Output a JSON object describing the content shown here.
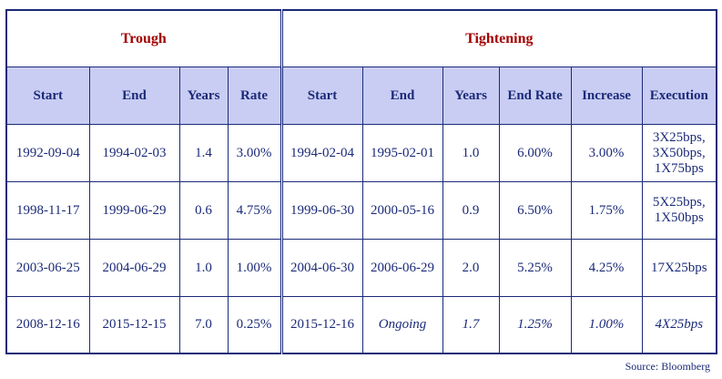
{
  "groups": {
    "trough": "Trough",
    "tightening": "Tightening"
  },
  "headers": {
    "trough_start": "Start",
    "trough_end": "End",
    "trough_years": "Years",
    "trough_rate": "Rate",
    "tight_start": "Start",
    "tight_end": "End",
    "tight_years": "Years",
    "tight_end_rate": "End Rate",
    "increase": "Increase",
    "execution": "Execution"
  },
  "rows": [
    {
      "trough_start": "1992-09-04",
      "trough_end": "1994-02-03",
      "trough_years": "1.4",
      "trough_rate": "3.00%",
      "tight_start": "1994-02-04",
      "tight_end": "1995-02-01",
      "tight_years": "1.0",
      "end_rate": "6.00%",
      "increase": "3.00%",
      "execution": [
        "3X25bps,",
        "3X50bps,",
        "1X75bps"
      ]
    },
    {
      "trough_start": "1998-11-17",
      "trough_end": "1999-06-29",
      "trough_years": "0.6",
      "trough_rate": "4.75%",
      "tight_start": "1999-06-30",
      "tight_end": "2000-05-16",
      "tight_years": "0.9",
      "end_rate": "6.50%",
      "increase": "1.75%",
      "execution": [
        "5X25bps,",
        "1X50bps"
      ]
    },
    {
      "trough_start": "2003-06-25",
      "trough_end": "2004-06-29",
      "trough_years": "1.0",
      "trough_rate": "1.00%",
      "tight_start": "2004-06-30",
      "tight_end": "2006-06-29",
      "tight_years": "2.0",
      "end_rate": "5.25%",
      "increase": "4.25%",
      "execution": [
        "17X25bps"
      ]
    },
    {
      "trough_start": "2008-12-16",
      "trough_end": "2015-12-15",
      "trough_years": "7.0",
      "trough_rate": "0.25%",
      "tight_start": "2015-12-16",
      "tight_end": "Ongoing",
      "tight_years": "1.7",
      "end_rate": "1.25%",
      "increase": "1.00%",
      "execution": [
        "4X25bps"
      ]
    }
  ],
  "source": "Source: Bloomberg",
  "colors": {
    "border": "#1b2a78",
    "header_fill": "#c9cdf3",
    "group_title": "#a30000",
    "text": "#1b2a78"
  }
}
